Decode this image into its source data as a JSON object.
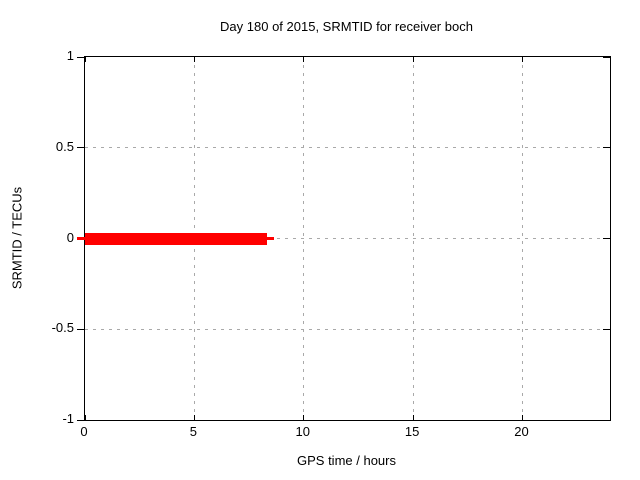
{
  "page": {
    "background": "#ffffff"
  },
  "chart_data": {
    "type": "line",
    "title": "Day 180 of 2015, SRMTID for receiver boch",
    "xlabel": "GPS time / hours",
    "ylabel": "SRMTID / TECUs",
    "xlim": [
      0,
      24
    ],
    "ylim": [
      -1,
      1
    ],
    "xticks": [
      0,
      5,
      10,
      15,
      20
    ],
    "xticklabels": [
      "0",
      "5",
      "10",
      "15",
      "20"
    ],
    "yticks": [
      1,
      0.5,
      0,
      -0.5,
      -1
    ],
    "yticklabels": [
      "1",
      "0.5",
      "0",
      "-0.5",
      "-1"
    ],
    "grid": "dashed",
    "legend": "none",
    "series": [
      {
        "name": "SRMTID",
        "color": "#ff0000",
        "value": 0,
        "x_start": 0,
        "x_end": 8.3,
        "line_thickness_px": 12,
        "cap_thickness_px": 3
      }
    ],
    "colors": {
      "background": "#ffffff",
      "frame": "#000000",
      "grid": "#a9a9a9",
      "text": "#000000",
      "line": "#ff0000"
    }
  }
}
